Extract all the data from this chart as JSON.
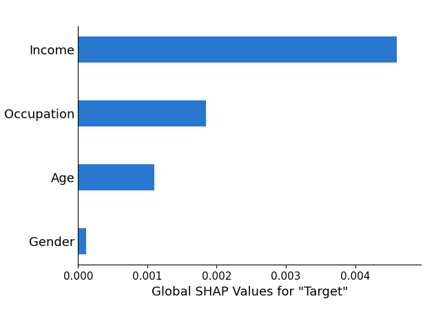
{
  "categories": [
    "Gender",
    "Age",
    "Occupation",
    "Income"
  ],
  "values": [
    0.000115,
    0.0011,
    0.00185,
    0.0046
  ],
  "bar_color": "#2878d0",
  "xlabel": "Global SHAP Values for \"Target\"",
  "xlabel_fontsize": 13,
  "tick_fontsize": 11,
  "ytick_fontsize": 13,
  "background_color": "#ffffff",
  "xlim": [
    0,
    0.00495
  ],
  "bar_height": 0.4
}
